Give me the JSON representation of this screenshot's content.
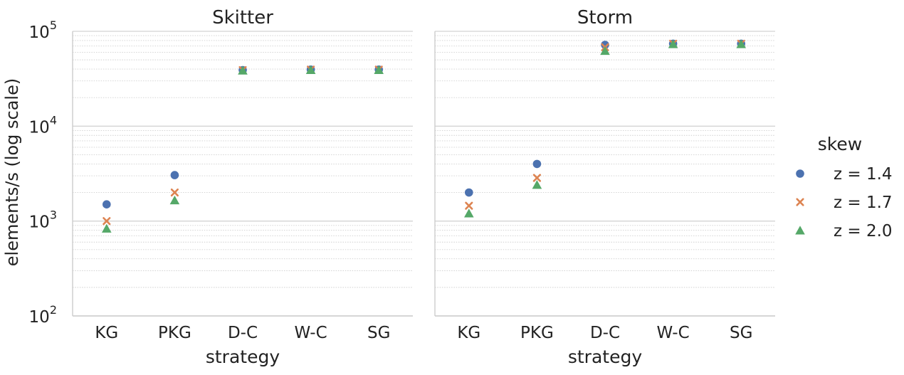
{
  "chart_data": {
    "type": "scatter",
    "legend_title": "skew",
    "legend_placement": "right",
    "xlabel": "strategy",
    "ylabel": "elements/s (log scale)",
    "yscale": "log",
    "ylim": [
      100,
      100000
    ],
    "ytick_bases": [
      "10",
      "10",
      "10",
      "10"
    ],
    "ytick_exponents": [
      "2",
      "3",
      "4",
      "5"
    ],
    "grid": true,
    "categories": [
      "KG",
      "PKG",
      "D-C",
      "W-C",
      "SG"
    ],
    "series_styles": [
      {
        "name": "z = 1.4",
        "marker": "circle",
        "color": "#4c72b0"
      },
      {
        "name": "z = 1.7",
        "marker": "x",
        "color": "#dd8452"
      },
      {
        "name": "z = 2.0",
        "marker": "triangle",
        "color": "#55a868"
      }
    ],
    "panels": [
      {
        "title": "Skitter",
        "series": [
          {
            "name": "z = 1.4",
            "values": [
              1500,
              3050,
              39000,
              39500,
              39500
            ]
          },
          {
            "name": "z = 1.7",
            "values": [
              1000,
              2000,
              39000,
              39500,
              39500
            ]
          },
          {
            "name": "z = 2.0",
            "values": [
              830,
              1650,
              38500,
              39000,
              39000
            ]
          }
        ]
      },
      {
        "title": "Storm",
        "series": [
          {
            "name": "z = 1.4",
            "values": [
              2000,
              4000,
              72000,
              74000,
              74000
            ]
          },
          {
            "name": "z = 1.7",
            "values": [
              1450,
              2850,
              68000,
              74000,
              74000
            ]
          },
          {
            "name": "z = 2.0",
            "values": [
              1200,
              2400,
              62000,
              73000,
              73000
            ]
          }
        ]
      }
    ]
  }
}
